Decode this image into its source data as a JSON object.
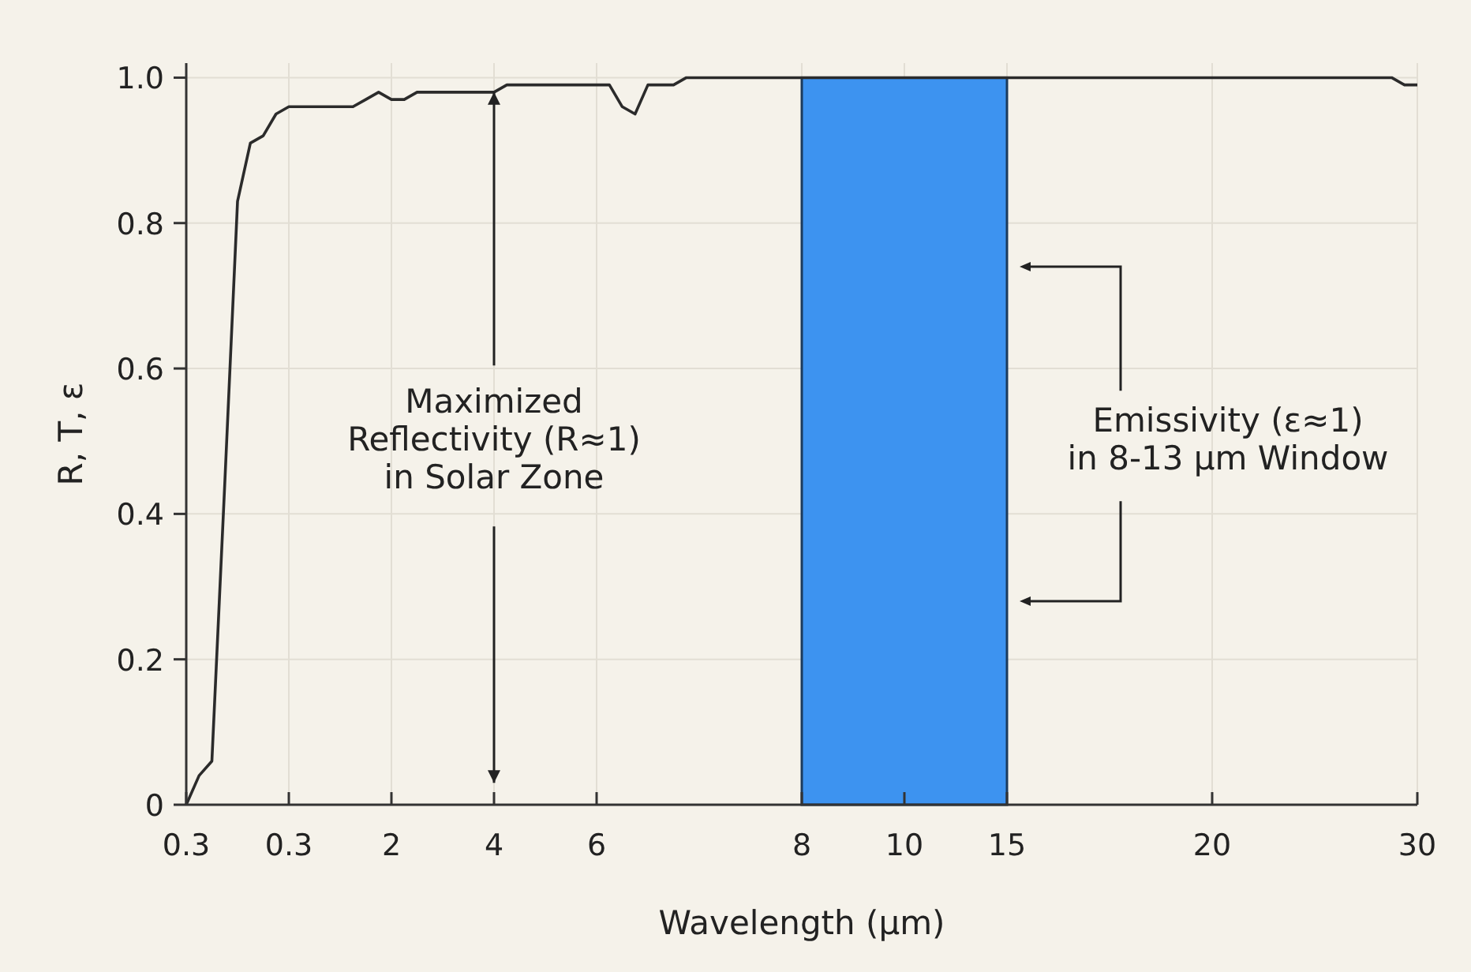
{
  "chart_data": {
    "type": "line",
    "xlabel": "Wavelength (μm)",
    "ylabel": "R, T, ε",
    "categories": [
      "0.3",
      null,
      null,
      null,
      null,
      null,
      null,
      null,
      "0.3",
      null,
      null,
      null,
      null,
      null,
      null,
      null,
      "2",
      null,
      null,
      null,
      null,
      null,
      null,
      null,
      "4",
      null,
      null,
      null,
      null,
      null,
      null,
      null,
      "6",
      null,
      null,
      null,
      null,
      null,
      null,
      null,
      null,
      null,
      null,
      null,
      null,
      null,
      null,
      null,
      "8",
      null,
      null,
      null,
      null,
      null,
      null,
      null,
      "10",
      null,
      null,
      null,
      null,
      null,
      null,
      null,
      "15",
      null,
      null,
      null,
      null,
      null,
      null,
      null,
      null,
      null,
      null,
      null,
      null,
      null,
      null,
      null,
      "20",
      null,
      null,
      null,
      null,
      null,
      null,
      null,
      null,
      null,
      null,
      null,
      null,
      null,
      null,
      null,
      "30"
    ],
    "ylim": [
      0,
      1.02
    ],
    "yticks": [
      0,
      0.2,
      0.4,
      0.6,
      0.8,
      {
        "value": 1,
        "label": "1.0"
      }
    ],
    "grid": true,
    "marker": "none",
    "line_style": "solid",
    "series": [
      {
        "color": "#2b2b2b",
        "values": [
          0,
          0.04,
          0.06,
          0.44,
          0.83,
          0.91,
          0.92,
          0.95,
          0.96,
          0.96,
          0.96,
          0.96,
          0.96,
          0.96,
          0.97,
          0.98,
          0.97,
          0.97,
          0.98,
          0.98,
          0.98,
          0.98,
          0.98,
          0.98,
          0.98,
          0.99,
          0.99,
          0.99,
          0.99,
          0.99,
          0.99,
          0.99,
          0.99,
          0.99,
          0.96,
          0.95,
          0.99,
          0.99,
          0.99,
          1,
          1,
          1,
          1,
          1,
          1,
          1,
          1,
          1,
          1,
          1,
          1,
          1,
          1,
          1,
          1,
          1,
          1,
          1,
          1,
          1,
          1,
          1,
          1,
          1,
          1,
          1,
          1,
          1,
          1,
          1,
          1,
          1,
          1,
          1,
          1,
          1,
          1,
          1,
          1,
          1,
          1,
          1,
          1,
          1,
          1,
          1,
          1,
          1,
          1,
          1,
          1,
          1,
          1,
          1,
          1,
          0.99,
          0.99
        ]
      }
    ],
    "bands": [
      {
        "axis": "x",
        "from": "8",
        "to": "15",
        "color": "#3d93f0"
      }
    ],
    "annotations": [
      "Maximized\nReflectivity (R≈1)\nin Solar Zone",
      "Emissivity (ε≈1)\nin 8-13 μm Window"
    ]
  }
}
